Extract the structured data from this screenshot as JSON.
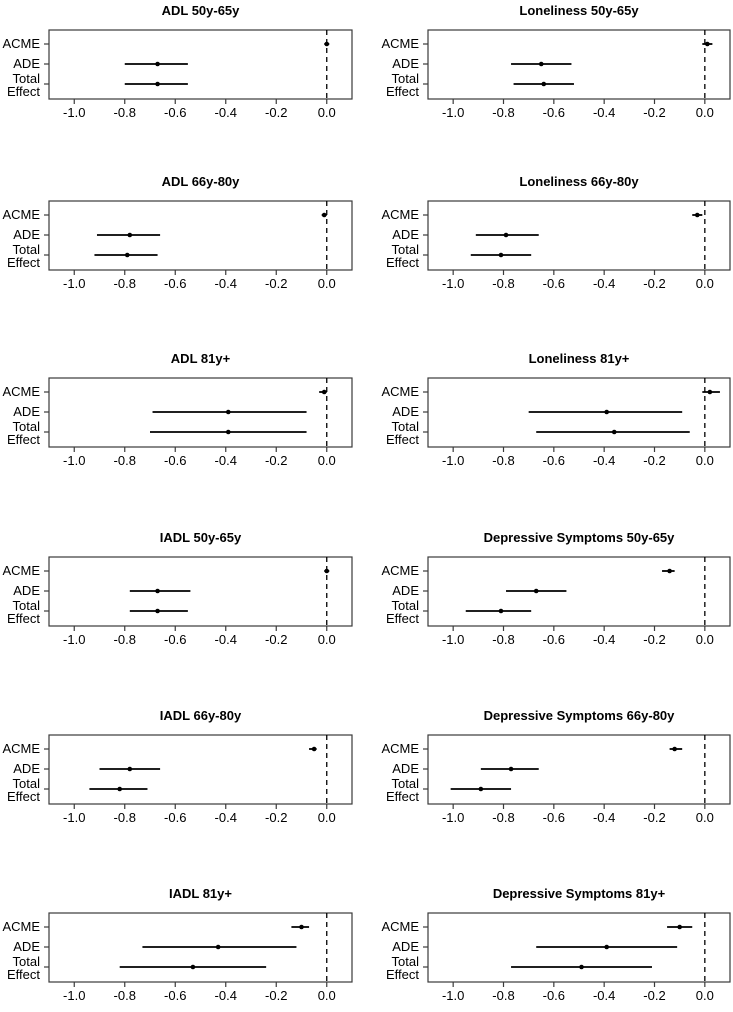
{
  "figure": {
    "description": "Grid of forest plots of causal mediation effects (ACME, ADE, Total Effect) with 95% confidence intervals",
    "colors": {
      "background": "#ffffff",
      "frame": "#3a3a3a",
      "data": "#000000",
      "text": "#000000"
    },
    "axis": {
      "xlim": [
        -1.1,
        0.1
      ],
      "xtick_values": [
        -1.0,
        -0.8,
        -0.6,
        -0.4,
        -0.2,
        0.0
      ],
      "xtick_labels": [
        "-1.0",
        "-0.8",
        "-0.6",
        "-0.4",
        "-0.2",
        "0.0"
      ],
      "row_labels": [
        "ACME",
        "ADE",
        "Total Effect"
      ],
      "row_label_lines": [
        [
          "ACME"
        ],
        [
          "ADE"
        ],
        [
          "Total",
          "Effect"
        ]
      ],
      "reference_line": 0.0,
      "grid": false,
      "legend": "none"
    }
  },
  "chart_data": {
    "type": "scatter",
    "subtype": "forest-plot-grid",
    "grid": {
      "rows": 6,
      "cols": 2
    },
    "xlim": [
      -1.1,
      0.1
    ],
    "xticks": [
      -1.0,
      -0.8,
      -0.6,
      -0.4,
      -0.2,
      0.0
    ],
    "reference_line": 0.0,
    "categories": [
      "ACME",
      "ADE",
      "Total Effect"
    ],
    "panels": [
      {
        "title": "ADL 50y-65y",
        "series": [
          {
            "name": "ACME",
            "est": 0.0,
            "lo": -0.01,
            "hi": 0.01
          },
          {
            "name": "ADE",
            "est": -0.67,
            "lo": -0.8,
            "hi": -0.55
          },
          {
            "name": "Total Effect",
            "est": -0.67,
            "lo": -0.8,
            "hi": -0.55
          }
        ]
      },
      {
        "title": "Loneliness 50y-65y",
        "series": [
          {
            "name": "ACME",
            "est": 0.01,
            "lo": -0.01,
            "hi": 0.03
          },
          {
            "name": "ADE",
            "est": -0.65,
            "lo": -0.77,
            "hi": -0.53
          },
          {
            "name": "Total Effect",
            "est": -0.64,
            "lo": -0.76,
            "hi": -0.52
          }
        ]
      },
      {
        "title": "ADL 66y-80y",
        "series": [
          {
            "name": "ACME",
            "est": -0.01,
            "lo": -0.02,
            "hi": 0.0
          },
          {
            "name": "ADE",
            "est": -0.78,
            "lo": -0.91,
            "hi": -0.66
          },
          {
            "name": "Total Effect",
            "est": -0.79,
            "lo": -0.92,
            "hi": -0.67
          }
        ]
      },
      {
        "title": "Loneliness 66y-80y",
        "series": [
          {
            "name": "ACME",
            "est": -0.03,
            "lo": -0.05,
            "hi": -0.01
          },
          {
            "name": "ADE",
            "est": -0.79,
            "lo": -0.91,
            "hi": -0.66
          },
          {
            "name": "Total Effect",
            "est": -0.81,
            "lo": -0.93,
            "hi": -0.69
          }
        ]
      },
      {
        "title": "ADL 81y+",
        "series": [
          {
            "name": "ACME",
            "est": -0.01,
            "lo": -0.03,
            "hi": 0.0
          },
          {
            "name": "ADE",
            "est": -0.39,
            "lo": -0.69,
            "hi": -0.08
          },
          {
            "name": "Total Effect",
            "est": -0.39,
            "lo": -0.7,
            "hi": -0.08
          }
        ]
      },
      {
        "title": "Loneliness 81y+",
        "series": [
          {
            "name": "ACME",
            "est": 0.02,
            "lo": -0.01,
            "hi": 0.06
          },
          {
            "name": "ADE",
            "est": -0.39,
            "lo": -0.7,
            "hi": -0.09
          },
          {
            "name": "Total Effect",
            "est": -0.36,
            "lo": -0.67,
            "hi": -0.06
          }
        ]
      },
      {
        "title": "IADL 50y-65y",
        "series": [
          {
            "name": "ACME",
            "est": 0.0,
            "lo": -0.01,
            "hi": 0.01
          },
          {
            "name": "ADE",
            "est": -0.67,
            "lo": -0.78,
            "hi": -0.54
          },
          {
            "name": "Total Effect",
            "est": -0.67,
            "lo": -0.78,
            "hi": -0.55
          }
        ]
      },
      {
        "title": "Depressive Symptoms 50y-65y",
        "series": [
          {
            "name": "ACME",
            "est": -0.14,
            "lo": -0.17,
            "hi": -0.12
          },
          {
            "name": "ADE",
            "est": -0.67,
            "lo": -0.79,
            "hi": -0.55
          },
          {
            "name": "Total Effect",
            "est": -0.81,
            "lo": -0.95,
            "hi": -0.69
          }
        ]
      },
      {
        "title": "IADL 66y-80y",
        "series": [
          {
            "name": "ACME",
            "est": -0.05,
            "lo": -0.07,
            "hi": -0.04
          },
          {
            "name": "ADE",
            "est": -0.78,
            "lo": -0.9,
            "hi": -0.66
          },
          {
            "name": "Total Effect",
            "est": -0.82,
            "lo": -0.94,
            "hi": -0.71
          }
        ]
      },
      {
        "title": "Depressive Symptoms 66y-80y",
        "series": [
          {
            "name": "ACME",
            "est": -0.12,
            "lo": -0.14,
            "hi": -0.09
          },
          {
            "name": "ADE",
            "est": -0.77,
            "lo": -0.89,
            "hi": -0.66
          },
          {
            "name": "Total Effect",
            "est": -0.89,
            "lo": -1.01,
            "hi": -0.77
          }
        ]
      },
      {
        "title": "IADL 81y+",
        "series": [
          {
            "name": "ACME",
            "est": -0.1,
            "lo": -0.14,
            "hi": -0.07
          },
          {
            "name": "ADE",
            "est": -0.43,
            "lo": -0.73,
            "hi": -0.12
          },
          {
            "name": "Total Effect",
            "est": -0.53,
            "lo": -0.82,
            "hi": -0.24
          }
        ]
      },
      {
        "title": "Depressive Symptoms 81y+",
        "series": [
          {
            "name": "ACME",
            "est": -0.1,
            "lo": -0.15,
            "hi": -0.05
          },
          {
            "name": "ADE",
            "est": -0.39,
            "lo": -0.67,
            "hi": -0.11
          },
          {
            "name": "Total Effect",
            "est": -0.49,
            "lo": -0.77,
            "hi": -0.21
          }
        ]
      }
    ]
  }
}
